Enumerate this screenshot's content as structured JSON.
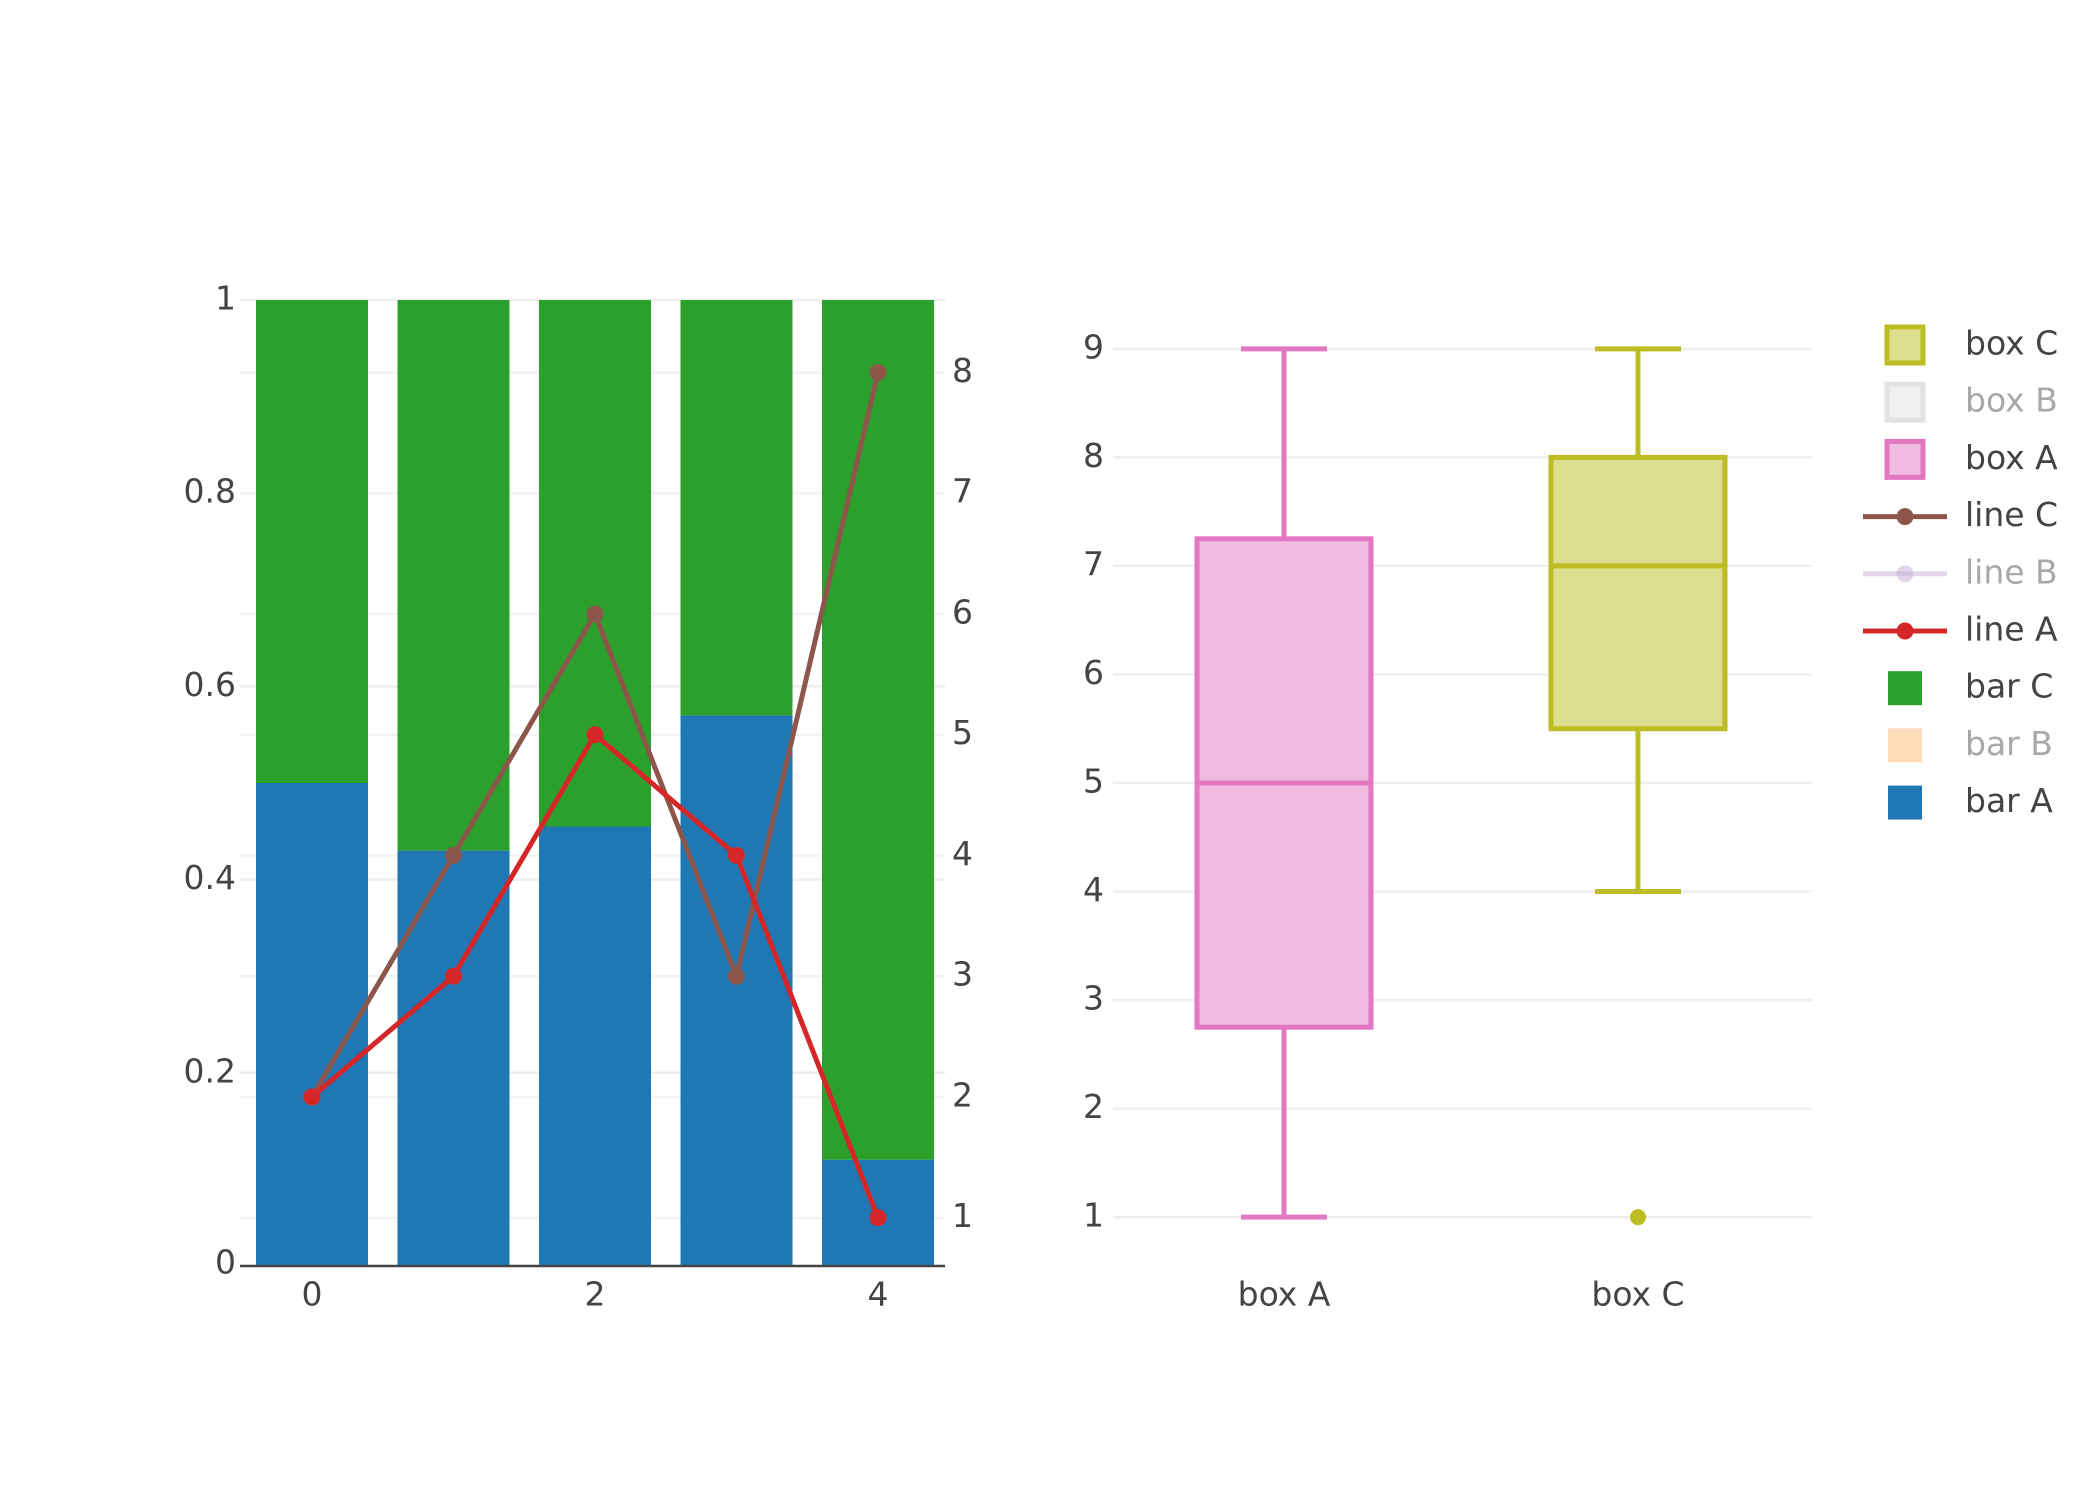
{
  "colors": {
    "bar_a": "#1f77b4",
    "bar_b": "#ffbb78",
    "bar_c": "#2ca02c",
    "line_a": "#d62728",
    "line_b": "#c5b0d5",
    "line_c": "#8c564b",
    "box_a": "#e377c2",
    "box_b": "#c7c7c7",
    "box_c": "#bcbd22"
  },
  "chart_data": [
    {
      "type": "bar",
      "barmode": "stack",
      "normalized": true,
      "x": [
        0,
        1,
        2,
        3,
        4
      ],
      "x_ticks": [
        "0",
        "2",
        "4"
      ],
      "y_ticks": [
        "0",
        "0.2",
        "0.4",
        "0.6",
        "0.8",
        "1"
      ],
      "ylim": [
        0,
        1
      ],
      "y2_ticks": [
        "1",
        "2",
        "3",
        "4",
        "5",
        "6",
        "7",
        "8"
      ],
      "y2lim": [
        0.6,
        8.6
      ],
      "series": [
        {
          "name": "bar A",
          "kind": "bar",
          "axis": "y",
          "color": "#1f77b4",
          "values": [
            0.5,
            0.43,
            0.455,
            0.57,
            0.11
          ]
        },
        {
          "name": "bar C",
          "kind": "bar",
          "axis": "y",
          "color": "#2ca02c",
          "values": [
            0.5,
            0.57,
            0.545,
            0.43,
            0.89
          ]
        },
        {
          "name": "line C",
          "kind": "line",
          "axis": "y2",
          "color": "#8c564b",
          "values": [
            2,
            4,
            6,
            3,
            8
          ]
        },
        {
          "name": "line A",
          "kind": "line",
          "axis": "y2",
          "color": "#d62728",
          "values": [
            2,
            3,
            5,
            4,
            1
          ]
        }
      ]
    },
    {
      "type": "box",
      "categories": [
        "box A",
        "box C"
      ],
      "y_ticks": [
        "1",
        "2",
        "3",
        "4",
        "5",
        "6",
        "7",
        "8",
        "9"
      ],
      "ylim": [
        0.55,
        9.45
      ],
      "boxes": [
        {
          "name": "box A",
          "color": "#e377c2",
          "fill": "#f0bbe0",
          "min": 1,
          "q1": 2.75,
          "median": 5,
          "q3": 7.25,
          "max": 9,
          "outliers": []
        },
        {
          "name": "box C",
          "color": "#bcbd22",
          "fill": "#dddd90",
          "min": 4,
          "q1": 5.5,
          "median": 7,
          "q3": 8,
          "max": 9,
          "outliers": [
            1
          ]
        }
      ]
    }
  ],
  "legend": {
    "placement": "right",
    "items": [
      {
        "label": "box C",
        "kind": "box",
        "color": "#bcbd22",
        "fill": "#dddd90",
        "visible": true
      },
      {
        "label": "box B",
        "kind": "box",
        "color": "#c7c7c7",
        "fill": "#e3e3e3",
        "visible": false
      },
      {
        "label": "box A",
        "kind": "box",
        "color": "#e377c2",
        "fill": "#f0bbe0",
        "visible": true
      },
      {
        "label": "line C",
        "kind": "line",
        "color": "#8c564b",
        "visible": true
      },
      {
        "label": "line B",
        "kind": "line",
        "color": "#c5b0d5",
        "visible": false
      },
      {
        "label": "line A",
        "kind": "line",
        "color": "#d62728",
        "visible": true
      },
      {
        "label": "bar C",
        "kind": "bar",
        "color": "#2ca02c",
        "visible": true
      },
      {
        "label": "bar B",
        "kind": "bar",
        "color": "#ffbb78",
        "visible": false
      },
      {
        "label": "bar A",
        "kind": "bar",
        "color": "#1f77b4",
        "visible": true
      }
    ]
  }
}
